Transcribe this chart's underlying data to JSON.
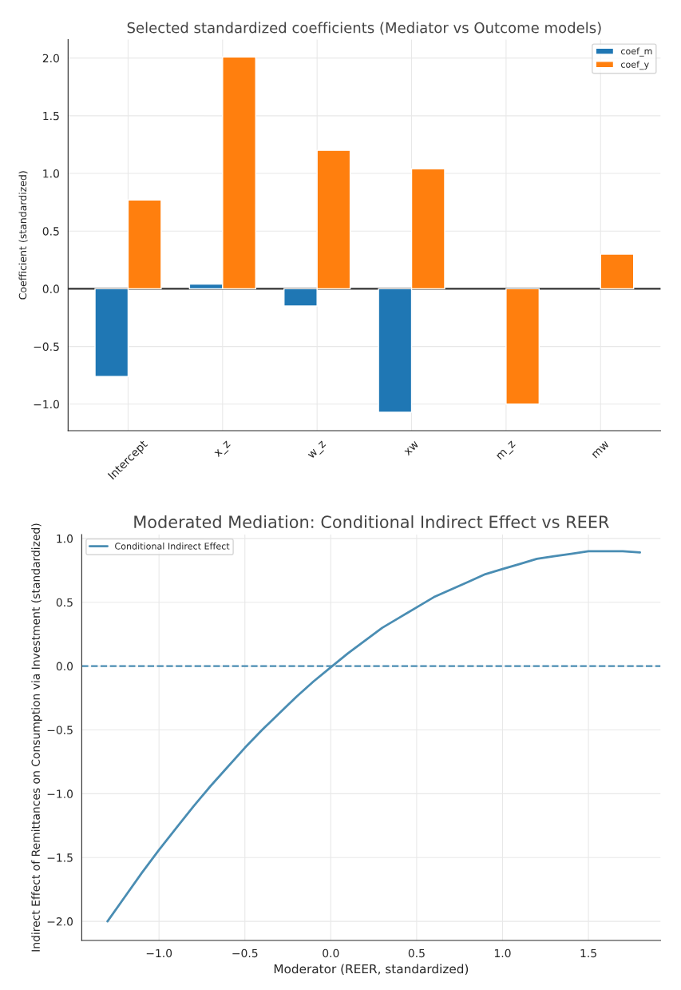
{
  "chart_data": [
    {
      "type": "bar",
      "title": "Selected standardized coefficients (Mediator vs Outcome models)",
      "ylabel": "Coefficient (standardized)",
      "categories": [
        "Intercept",
        "x_z",
        "w_z",
        "xw",
        "m_z",
        "mw"
      ],
      "series": [
        {
          "name": "coef_m",
          "color": "#1f77b4",
          "values": [
            -0.76,
            0.04,
            -0.15,
            -1.07,
            null,
            null
          ]
        },
        {
          "name": "coef_y",
          "color": "#ff7f0e",
          "values": [
            0.77,
            2.01,
            1.2,
            1.04,
            -1.0,
            0.3
          ]
        }
      ],
      "ylim": [
        -1.23,
        2.16
      ],
      "yticks": [
        {
          "value": -1,
          "label": "−1.0"
        },
        {
          "value": -0.5,
          "label": "−0.5"
        },
        {
          "value": 0,
          "label": "0.0"
        },
        {
          "value": 0.5,
          "label": "0.5"
        },
        {
          "value": 1,
          "label": "1.0"
        },
        {
          "value": 1.5,
          "label": "1.5"
        },
        {
          "value": 2,
          "label": "2.0"
        }
      ],
      "ref_lines": [
        {
          "axis": "y",
          "value": 0,
          "color": "#333333",
          "line_style": "solid"
        }
      ],
      "grid": true,
      "legend": "top right"
    },
    {
      "type": "line",
      "title": "Moderated Mediation: Conditional Indirect Effect vs REER",
      "xlabel": "Moderator (REER, standardized)",
      "ylabel": "Indirect Effect of Remittances on Consumption via Investment (standardized)",
      "series": [
        {
          "name": "Conditional Indirect Effect",
          "color": "#4a8db3",
          "x": [
            -1.3,
            -1.2,
            -1.1,
            -1.0,
            -0.9,
            -0.8,
            -0.7,
            -0.6,
            -0.5,
            -0.4,
            -0.3,
            -0.2,
            -0.1,
            0.0,
            0.1,
            0.2,
            0.3,
            0.4,
            0.5,
            0.6,
            0.7,
            0.8,
            0.9,
            1.0,
            1.1,
            1.2,
            1.3,
            1.4,
            1.5,
            1.6,
            1.7,
            1.8
          ],
          "values": [
            -2.0,
            -1.81,
            -1.62,
            -1.44,
            -1.27,
            -1.1,
            -0.94,
            -0.79,
            -0.64,
            -0.5,
            -0.37,
            -0.24,
            -0.12,
            -0.01,
            0.1,
            0.2,
            0.3,
            0.38,
            0.46,
            0.54,
            0.6,
            0.66,
            0.72,
            0.76,
            0.8,
            0.84,
            0.86,
            0.88,
            0.9,
            0.9,
            0.9,
            0.89
          ]
        }
      ],
      "xlim": [
        -1.45,
        1.92
      ],
      "xticks": [
        {
          "value": -1,
          "label": "−1.0"
        },
        {
          "value": -0.5,
          "label": "−0.5"
        },
        {
          "value": 0,
          "label": "0.0"
        },
        {
          "value": 0.5,
          "label": "0.5"
        },
        {
          "value": 1,
          "label": "1.0"
        },
        {
          "value": 1.5,
          "label": "1.5"
        }
      ],
      "ylim": [
        -2.15,
        1.03
      ],
      "yticks": [
        {
          "value": -2,
          "label": "−2.0"
        },
        {
          "value": -1.5,
          "label": "−1.5"
        },
        {
          "value": -1,
          "label": "−1.0"
        },
        {
          "value": -0.5,
          "label": "−0.5"
        },
        {
          "value": 0,
          "label": "0.0"
        },
        {
          "value": 0.5,
          "label": "0.5"
        },
        {
          "value": 1,
          "label": "1.0"
        }
      ],
      "ref_lines": [
        {
          "axis": "y",
          "value": 0,
          "color": "#4a8db3",
          "line_style": "dashed"
        }
      ],
      "grid": true,
      "legend": "top left",
      "line_style": "solid",
      "marker": "none"
    }
  ]
}
